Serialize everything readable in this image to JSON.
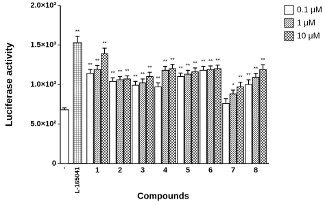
{
  "chart_data": {
    "type": "bar",
    "y_label": "Luciferase activity",
    "x_label": "Compounds",
    "categories": [
      "-",
      "L-165041",
      "1",
      "2",
      "3",
      "4",
      "5",
      "6",
      "7",
      "8"
    ],
    "controls": {
      "values": [
        680,
        1530
      ],
      "errors": [
        25,
        80
      ],
      "annotations": [
        null,
        "**"
      ],
      "patterns": [
        "none",
        "grid"
      ]
    },
    "series": [
      {
        "name": "0.1 μM",
        "color": "#ffffff",
        "pattern": "none",
        "values": [
          null,
          null,
          1140,
          1040,
          990,
          970,
          1100,
          1180,
          760,
          1000
        ],
        "errors": [
          null,
          null,
          50,
          45,
          50,
          50,
          45,
          50,
          60,
          60
        ],
        "annotations": [
          null,
          null,
          "**",
          "**",
          "**",
          "**",
          "**",
          "**",
          null,
          "**"
        ]
      },
      {
        "name": "1 μM",
        "color": "#ffffff",
        "pattern": "hatch",
        "values": [
          null,
          null,
          1190,
          1060,
          1020,
          1180,
          1130,
          1190,
          880,
          1090
        ],
        "errors": [
          null,
          null,
          50,
          40,
          50,
          50,
          50,
          45,
          50,
          50
        ],
        "annotations": [
          null,
          null,
          "**",
          "**",
          "**",
          "**",
          "**",
          "**",
          "*",
          "**"
        ]
      },
      {
        "name": "10 μM",
        "color": "#ffffff",
        "pattern": "check",
        "values": [
          null,
          null,
          1390,
          1070,
          1100,
          1200,
          1160,
          1200,
          970,
          1190
        ],
        "errors": [
          null,
          null,
          70,
          40,
          55,
          55,
          50,
          45,
          60,
          60
        ],
        "annotations": [
          null,
          null,
          "**",
          "**",
          "**",
          "**",
          "**",
          "**",
          "**",
          "**"
        ]
      }
    ],
    "ylim": [
      0,
      2000
    ],
    "yticks": [
      0,
      {
        "value": 500,
        "label": "5.0×10²"
      },
      {
        "value": 1000,
        "label": "1.0×10³"
      },
      {
        "value": 1500,
        "label": "1.5×10³"
      },
      {
        "value": 2000,
        "label": "2.0×10³"
      }
    ],
    "legend": "top-right"
  }
}
